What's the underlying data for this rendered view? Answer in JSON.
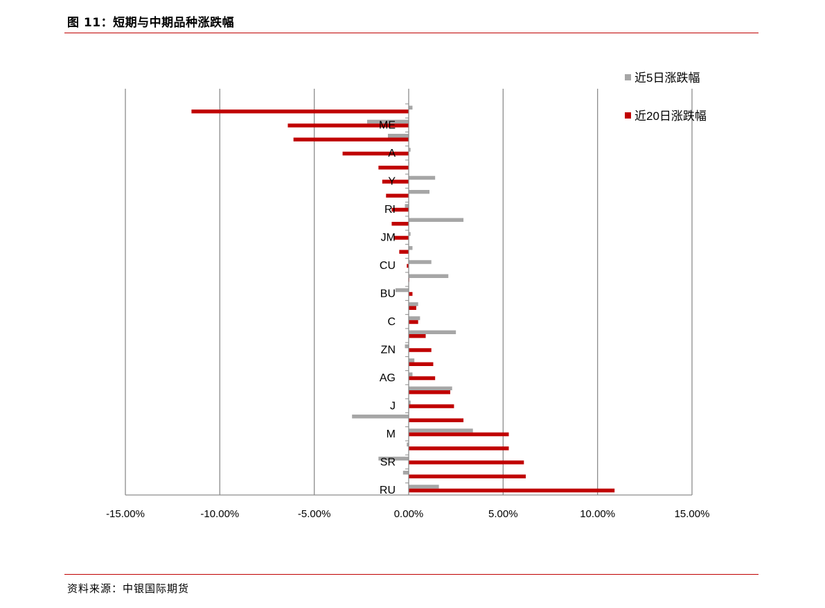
{
  "figure": {
    "title": "图 11：短期与中期品种涨跌幅",
    "source": "资料来源：中银国际期货"
  },
  "colors": {
    "series_5d": "#a6a6a6",
    "series_20d": "#c00000",
    "gridline": "#8c8c8c",
    "rule": "#c00000"
  },
  "chart_data": {
    "type": "bar",
    "orientation": "horizontal",
    "title": "",
    "xlabel": "",
    "ylabel": "",
    "xlim": [
      -15,
      15
    ],
    "x_ticks": [
      "-15.00%",
      "-10.00%",
      "-5.00%",
      "0.00%",
      "5.00%",
      "10.00%",
      "15.00%"
    ],
    "x_tick_values": [
      -15,
      -10,
      -5,
      0,
      5,
      10,
      15
    ],
    "category_labels": [
      "ME",
      "A",
      "Y",
      "RI",
      "JM",
      "CU",
      "BU",
      "C",
      "ZN",
      "AG",
      "J",
      "M",
      "SR",
      "RU"
    ],
    "grid": "vertical",
    "legend_position": "right",
    "series": [
      {
        "name": "近5日涨跌幅",
        "values": [
          0.2,
          -2.2,
          -1.1,
          0.1,
          0.0,
          1.4,
          1.1,
          -0.2,
          2.9,
          0.1,
          0.2,
          1.2,
          2.1,
          -0.7,
          0.5,
          0.6,
          2.5,
          -0.2,
          0.3,
          0.2,
          2.3,
          0.1,
          -3.0,
          3.4,
          -0.1,
          -1.6,
          -0.3,
          1.6
        ]
      },
      {
        "name": "近20日涨跌幅",
        "values": [
          -11.5,
          -6.4,
          -6.1,
          -3.5,
          -1.6,
          -1.4,
          -1.2,
          -0.9,
          -0.9,
          -0.8,
          -0.5,
          -0.1,
          0.0,
          0.2,
          0.4,
          0.5,
          0.9,
          1.2,
          1.3,
          1.4,
          2.2,
          2.4,
          2.9,
          5.3,
          5.3,
          6.1,
          6.2,
          10.9
        ]
      }
    ]
  }
}
